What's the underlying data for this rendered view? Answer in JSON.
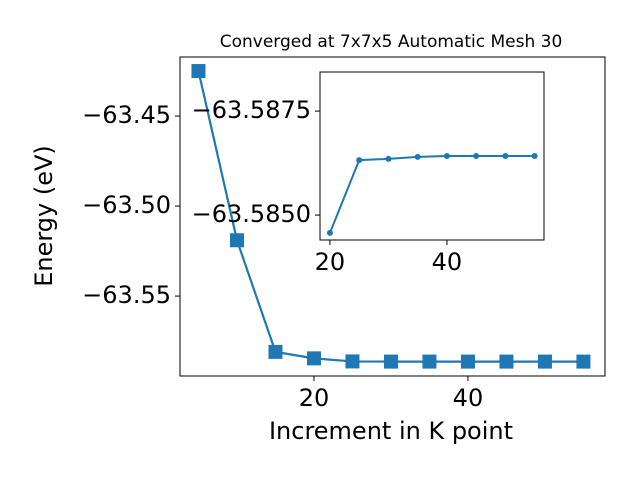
{
  "chart_data": [
    {
      "type": "line",
      "title": "Converged at 7x7x5 Automatic Mesh 30",
      "x_label": "Increment in K point",
      "y_label": "Energy (eV)",
      "x": [
        5,
        10,
        15,
        20,
        25,
        30,
        35,
        40,
        45,
        50,
        55
      ],
      "series": [
        {
          "name": "Energy",
          "color": "#1f77b4",
          "marker": "square",
          "values": [
            -63.425,
            -63.519,
            -63.581,
            -63.5846,
            -63.5863,
            -63.5864,
            -63.5864,
            -63.5864,
            -63.5864,
            -63.5864,
            -63.5864
          ]
        }
      ],
      "xlim": [
        2.6,
        57.8
      ],
      "ylim": [
        -63.5944,
        -63.4172
      ],
      "xticks": [
        20,
        40
      ],
      "yticks": [
        {
          "value": -63.45,
          "label": "−63.45"
        },
        {
          "value": -63.5,
          "label": "−63.50"
        },
        {
          "value": -63.55,
          "label": "−63.55"
        }
      ]
    },
    {
      "type": "line",
      "x": [
        20,
        25,
        30,
        35,
        40,
        45,
        50,
        55
      ],
      "series": [
        {
          "name": "Energy",
          "color": "#1f77b4",
          "marker": "circle",
          "values": [
            -63.58457,
            -63.58632,
            -63.58635,
            -63.5864,
            -63.58642,
            -63.58642,
            -63.58642,
            -63.58642
          ]
        }
      ],
      "xlim": [
        18.3,
        56.6
      ],
      "ylim": [
        -63.5844,
        -63.58844
      ],
      "xticks": [
        20,
        40
      ],
      "yticks": [
        {
          "value": -63.5875,
          "label": "−63.5875"
        },
        {
          "value": -63.585,
          "label": "−63.5850"
        }
      ]
    }
  ]
}
